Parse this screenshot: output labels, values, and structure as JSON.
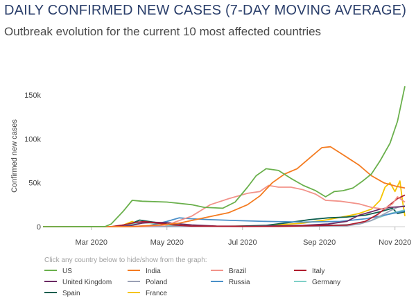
{
  "header": {
    "title": "DAILY CONFIRMED NEW CASES (7-DAY MOVING AVERAGE)",
    "subtitle": "Outbreak evolution for the current 10 most affected countries"
  },
  "legend": {
    "hint": "Click any country below to hide/show from the graph:"
  },
  "chart_data": {
    "type": "line",
    "xlabel": "",
    "ylabel": "Confirmed new cases",
    "x_ticks": [
      {
        "label": "Mar 2020",
        "day": 29
      },
      {
        "label": "May 2020",
        "day": 90
      },
      {
        "label": "Jul 2020",
        "day": 151
      },
      {
        "label": "Sep 2020",
        "day": 213
      },
      {
        "label": "Nov 2020",
        "day": 274
      }
    ],
    "x_range_days": [
      -10,
      282
    ],
    "x_origin": "2020-02-01",
    "y_ticks": [
      {
        "label": "0",
        "value": 0
      },
      {
        "label": "50k",
        "value": 50000
      },
      {
        "label": "100k",
        "value": 100000
      },
      {
        "label": "150k",
        "value": 150000
      }
    ],
    "ylim": [
      0,
      165000
    ],
    "grid": false,
    "legend_position": "bottom",
    "series": [
      {
        "name": "US",
        "color": "#6ab04c",
        "points": [
          [
            -10,
            0
          ],
          [
            40,
            100
          ],
          [
            45,
            3000
          ],
          [
            55,
            18000
          ],
          [
            62,
            30000
          ],
          [
            70,
            29000
          ],
          [
            90,
            28000
          ],
          [
            110,
            25000
          ],
          [
            120,
            22000
          ],
          [
            135,
            21000
          ],
          [
            145,
            28000
          ],
          [
            155,
            45000
          ],
          [
            162,
            58000
          ],
          [
            170,
            66000
          ],
          [
            180,
            64000
          ],
          [
            190,
            55000
          ],
          [
            200,
            47000
          ],
          [
            210,
            41000
          ],
          [
            218,
            34000
          ],
          [
            225,
            40000
          ],
          [
            232,
            41000
          ],
          [
            240,
            44000
          ],
          [
            248,
            52000
          ],
          [
            255,
            60000
          ],
          [
            262,
            75000
          ],
          [
            270,
            95000
          ],
          [
            276,
            120000
          ],
          [
            282,
            160000
          ]
        ]
      },
      {
        "name": "India",
        "color": "#f47b20",
        "points": [
          [
            -10,
            0
          ],
          [
            60,
            0
          ],
          [
            85,
            2000
          ],
          [
            100,
            4000
          ],
          [
            120,
            10000
          ],
          [
            140,
            16000
          ],
          [
            155,
            25000
          ],
          [
            165,
            35000
          ],
          [
            175,
            50000
          ],
          [
            185,
            60000
          ],
          [
            195,
            66000
          ],
          [
            205,
            78000
          ],
          [
            215,
            90000
          ],
          [
            222,
            91000
          ],
          [
            232,
            82000
          ],
          [
            245,
            70000
          ],
          [
            255,
            58000
          ],
          [
            265,
            50000
          ],
          [
            275,
            46000
          ],
          [
            282,
            44000
          ]
        ]
      },
      {
        "name": "Brazil",
        "color": "#f2938a",
        "points": [
          [
            -10,
            0
          ],
          [
            70,
            0
          ],
          [
            90,
            2000
          ],
          [
            110,
            12000
          ],
          [
            125,
            25000
          ],
          [
            140,
            32000
          ],
          [
            155,
            38000
          ],
          [
            165,
            40000
          ],
          [
            172,
            47000
          ],
          [
            180,
            45000
          ],
          [
            190,
            45000
          ],
          [
            200,
            42000
          ],
          [
            210,
            37000
          ],
          [
            218,
            30000
          ],
          [
            230,
            29000
          ],
          [
            245,
            26000
          ],
          [
            255,
            22000
          ],
          [
            265,
            20000
          ],
          [
            272,
            26000
          ],
          [
            276,
            34000
          ],
          [
            282,
            28000
          ]
        ]
      },
      {
        "name": "Italy",
        "color": "#b01c2e",
        "points": [
          [
            -10,
            0
          ],
          [
            45,
            0
          ],
          [
            55,
            2000
          ],
          [
            65,
            5000
          ],
          [
            72,
            5800
          ],
          [
            80,
            4500
          ],
          [
            95,
            2000
          ],
          [
            110,
            600
          ],
          [
            150,
            200
          ],
          [
            180,
            300
          ],
          [
            210,
            1200
          ],
          [
            235,
            1800
          ],
          [
            250,
            6000
          ],
          [
            260,
            14000
          ],
          [
            270,
            25000
          ],
          [
            276,
            32000
          ],
          [
            282,
            36000
          ]
        ]
      },
      {
        "name": "United Kingdom",
        "color": "#6b2a63",
        "points": [
          [
            -10,
            0
          ],
          [
            50,
            0
          ],
          [
            60,
            1000
          ],
          [
            70,
            4000
          ],
          [
            78,
            5000
          ],
          [
            90,
            4500
          ],
          [
            110,
            2000
          ],
          [
            130,
            700
          ],
          [
            160,
            500
          ],
          [
            200,
            1500
          ],
          [
            220,
            3000
          ],
          [
            235,
            6000
          ],
          [
            245,
            13000
          ],
          [
            255,
            17000
          ],
          [
            262,
            20000
          ],
          [
            270,
            22000
          ],
          [
            282,
            23000
          ]
        ]
      },
      {
        "name": "Poland",
        "color": "#9aa0b5",
        "points": [
          [
            -10,
            0
          ],
          [
            80,
            0
          ],
          [
            120,
            300
          ],
          [
            200,
            500
          ],
          [
            235,
            1000
          ],
          [
            245,
            3000
          ],
          [
            255,
            7000
          ],
          [
            262,
            12000
          ],
          [
            270,
            18000
          ],
          [
            276,
            22000
          ],
          [
            282,
            24000
          ]
        ]
      },
      {
        "name": "Russia",
        "color": "#4a8fc8",
        "points": [
          [
            -10,
            0
          ],
          [
            60,
            0
          ],
          [
            75,
            1000
          ],
          [
            90,
            6000
          ],
          [
            100,
            10000
          ],
          [
            110,
            9000
          ],
          [
            125,
            8000
          ],
          [
            145,
            7000
          ],
          [
            170,
            6000
          ],
          [
            200,
            5200
          ],
          [
            230,
            6000
          ],
          [
            250,
            9000
          ],
          [
            262,
            12000
          ],
          [
            272,
            15000
          ],
          [
            282,
            18000
          ]
        ]
      },
      {
        "name": "Germany",
        "color": "#7fd0c8",
        "points": [
          [
            -10,
            0
          ],
          [
            50,
            0
          ],
          [
            60,
            2000
          ],
          [
            68,
            5000
          ],
          [
            78,
            4000
          ],
          [
            90,
            1500
          ],
          [
            110,
            500
          ],
          [
            160,
            500
          ],
          [
            200,
            1200
          ],
          [
            230,
            2000
          ],
          [
            245,
            3000
          ],
          [
            255,
            7000
          ],
          [
            262,
            11000
          ],
          [
            270,
            15000
          ],
          [
            276,
            17000
          ],
          [
            282,
            19000
          ]
        ]
      },
      {
        "name": "Spain",
        "color": "#0e5e4e",
        "points": [
          [
            -10,
            0
          ],
          [
            55,
            0
          ],
          [
            62,
            4000
          ],
          [
            68,
            7500
          ],
          [
            75,
            6000
          ],
          [
            90,
            3000
          ],
          [
            110,
            500
          ],
          [
            140,
            300
          ],
          [
            170,
            1500
          ],
          [
            190,
            5000
          ],
          [
            205,
            8000
          ],
          [
            220,
            10000
          ],
          [
            235,
            11000
          ],
          [
            250,
            13000
          ],
          [
            262,
            17000
          ],
          [
            272,
            21000
          ],
          [
            276,
            15000
          ],
          [
            282,
            17000
          ]
        ]
      },
      {
        "name": "France",
        "color": "#f5c400",
        "points": [
          [
            -10,
            0
          ],
          [
            45,
            0
          ],
          [
            55,
            2000
          ],
          [
            62,
            6000
          ],
          [
            66,
            3000
          ],
          [
            70,
            5000
          ],
          [
            78,
            4000
          ],
          [
            90,
            1500
          ],
          [
            110,
            500
          ],
          [
            140,
            500
          ],
          [
            170,
            1000
          ],
          [
            200,
            4000
          ],
          [
            220,
            8000
          ],
          [
            235,
            12000
          ],
          [
            245,
            15000
          ],
          [
            255,
            20000
          ],
          [
            262,
            30000
          ],
          [
            266,
            45000
          ],
          [
            270,
            50000
          ],
          [
            274,
            40000
          ],
          [
            278,
            52000
          ],
          [
            280,
            30000
          ],
          [
            282,
            12000
          ]
        ]
      }
    ]
  }
}
